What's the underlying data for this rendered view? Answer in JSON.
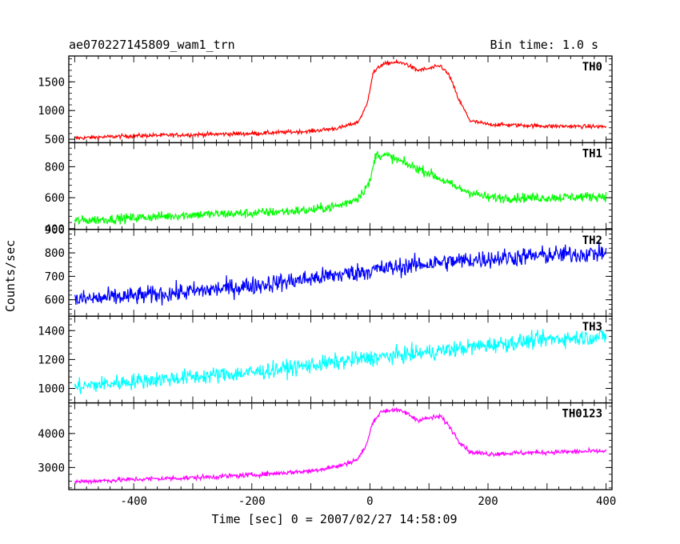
{
  "chart_data": {
    "type": "line",
    "title": "ae070227145809_wam1_trn",
    "subtitle": "Bin time: 1.0 s",
    "xlabel": "Time [sec] 0 = 2007/02/27 14:58:09",
    "ylabel": "Counts/sec",
    "xlim": [
      -510,
      410
    ],
    "x_ticks": [
      -400,
      -200,
      0,
      200,
      400
    ],
    "grid": false,
    "series": [
      {
        "name": "TH0",
        "color": "#ff0000",
        "ylim": [
          440,
          1950
        ],
        "y_ticks": [
          500,
          1000,
          1500
        ],
        "x": [
          -500,
          -400,
          -300,
          -200,
          -100,
          -50,
          -20,
          -5,
          5,
          20,
          40,
          60,
          80,
          100,
          120,
          135,
          150,
          170,
          200,
          300,
          400
        ],
        "values": [
          520,
          560,
          580,
          600,
          640,
          700,
          800,
          1100,
          1650,
          1800,
          1840,
          1820,
          1700,
          1730,
          1780,
          1600,
          1200,
          820,
          760,
          730,
          720
        ],
        "noise": 25
      },
      {
        "name": "TH1",
        "color": "#00ff00",
        "ylim": [
          395,
          955
        ],
        "y_ticks": [
          400,
          600,
          800
        ],
        "x": [
          -500,
          -400,
          -300,
          -200,
          -100,
          -50,
          -20,
          0,
          10,
          30,
          60,
          100,
          150,
          200,
          300,
          400
        ],
        "values": [
          450,
          470,
          490,
          500,
          520,
          550,
          600,
          700,
          880,
          870,
          820,
          760,
          660,
          600,
          600,
          610
        ],
        "noise": 22
      },
      {
        "name": "TH2",
        "color": "#0000ff",
        "ylim": [
          530,
          900
        ],
        "y_ticks": [
          600,
          700,
          800,
          900
        ],
        "x": [
          -500,
          -400,
          -300,
          -200,
          -100,
          0,
          100,
          200,
          300,
          400
        ],
        "values": [
          600,
          615,
          635,
          660,
          690,
          725,
          755,
          775,
          790,
          800
        ],
        "noise": 28
      },
      {
        "name": "TH3",
        "color": "#00ffff",
        "ylim": [
          900,
          1500
        ],
        "y_ticks": [
          1000,
          1200,
          1400
        ],
        "x": [
          -500,
          -400,
          -300,
          -200,
          -100,
          0,
          100,
          200,
          300,
          400
        ],
        "values": [
          1010,
          1050,
          1080,
          1110,
          1160,
          1210,
          1250,
          1300,
          1340,
          1360
        ],
        "noise": 40
      },
      {
        "name": "TH0123",
        "color": "#ff00ff",
        "ylim": [
          2350,
          4900
        ],
        "y_ticks": [
          3000,
          4000
        ],
        "x": [
          -500,
          -400,
          -300,
          -200,
          -100,
          -50,
          -20,
          -5,
          5,
          20,
          40,
          60,
          80,
          100,
          120,
          135,
          150,
          170,
          200,
          300,
          400
        ],
        "values": [
          2580,
          2650,
          2700,
          2780,
          2900,
          3050,
          3250,
          3700,
          4350,
          4650,
          4700,
          4620,
          4400,
          4450,
          4500,
          4200,
          3800,
          3450,
          3400,
          3450,
          3480
        ],
        "noise": 50
      }
    ]
  }
}
